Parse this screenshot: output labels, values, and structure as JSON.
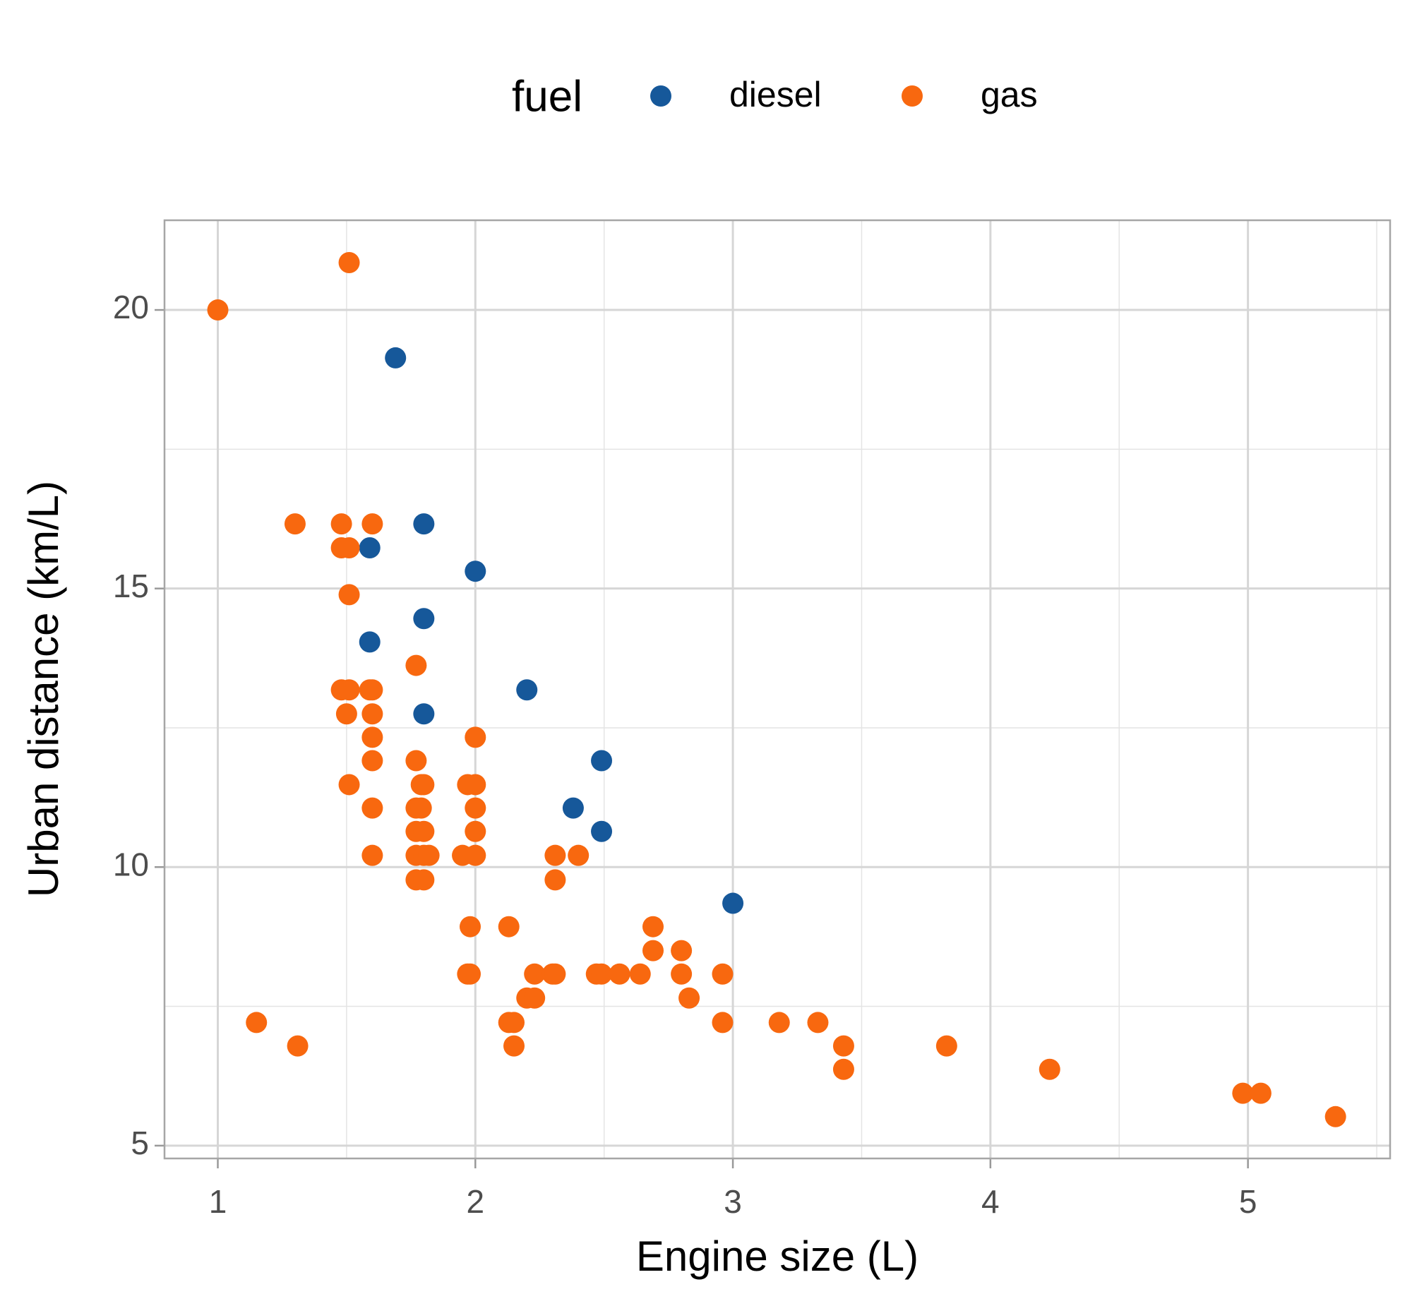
{
  "chart_data": {
    "type": "scatter",
    "x_label": "Engine size (L)",
    "y_label": "Urban distance (km/L)",
    "legend_title": "fuel",
    "legend_position": "top",
    "grid": true,
    "minor_grid": true,
    "xlim": [
      0.793,
      5.552
    ],
    "ylim": [
      4.77,
      21.61
    ],
    "xticks": [
      1,
      2,
      3,
      4,
      5
    ],
    "yticks": [
      5,
      10,
      15,
      20
    ],
    "series": [
      {
        "name": "diesel",
        "color": "#16589a",
        "x": [
          1.69,
          1.8,
          1.59,
          2.0,
          1.8,
          1.59,
          2.2,
          1.8,
          2.49,
          2.38,
          2.49,
          3.0
        ],
        "values": [
          19.14,
          16.16,
          15.73,
          15.31,
          14.46,
          14.04,
          13.18,
          12.75,
          11.91,
          11.06,
          10.64,
          9.35
        ]
      },
      {
        "name": "gas",
        "color": "#f8680f",
        "x": [
          1.51,
          1.0,
          1.3,
          1.48,
          1.6,
          1.48,
          1.51,
          1.51,
          1.77,
          1.48,
          1.51,
          1.59,
          1.6,
          1.5,
          1.6,
          1.6,
          2.0,
          1.6,
          1.77,
          1.51,
          1.79,
          1.8,
          1.97,
          2.0,
          1.6,
          1.77,
          1.79,
          2.0,
          1.77,
          1.8,
          2.0,
          1.6,
          1.77,
          1.8,
          1.82,
          1.95,
          2.0,
          2.31,
          2.4,
          1.77,
          1.8,
          2.31,
          1.98,
          2.13,
          2.69,
          2.69,
          2.8,
          1.97,
          1.98,
          2.23,
          2.3,
          2.31,
          2.47,
          2.49,
          2.56,
          2.64,
          2.8,
          2.96,
          2.2,
          2.23,
          2.83,
          1.15,
          2.13,
          2.15,
          2.96,
          3.18,
          3.33,
          1.31,
          2.15,
          3.43,
          3.83,
          3.43,
          4.23,
          4.98,
          5.05,
          5.34
        ],
        "values": [
          20.85,
          20.0,
          16.16,
          16.16,
          16.16,
          15.73,
          15.73,
          14.89,
          13.62,
          13.18,
          13.18,
          13.18,
          13.18,
          12.75,
          12.75,
          12.33,
          12.33,
          11.91,
          11.91,
          11.48,
          11.48,
          11.48,
          11.48,
          11.48,
          11.06,
          11.06,
          11.06,
          11.06,
          10.64,
          10.64,
          10.64,
          10.21,
          10.21,
          10.21,
          10.21,
          10.21,
          10.21,
          10.21,
          10.21,
          9.77,
          9.77,
          9.77,
          8.93,
          8.93,
          8.93,
          8.5,
          8.5,
          8.08,
          8.08,
          8.08,
          8.08,
          8.08,
          8.08,
          8.08,
          8.08,
          8.08,
          8.08,
          8.08,
          7.65,
          7.65,
          7.65,
          7.21,
          7.21,
          7.21,
          7.21,
          7.21,
          7.21,
          6.79,
          6.79,
          6.79,
          6.79,
          6.37,
          6.37,
          5.94,
          5.94,
          5.52
        ]
      }
    ]
  }
}
